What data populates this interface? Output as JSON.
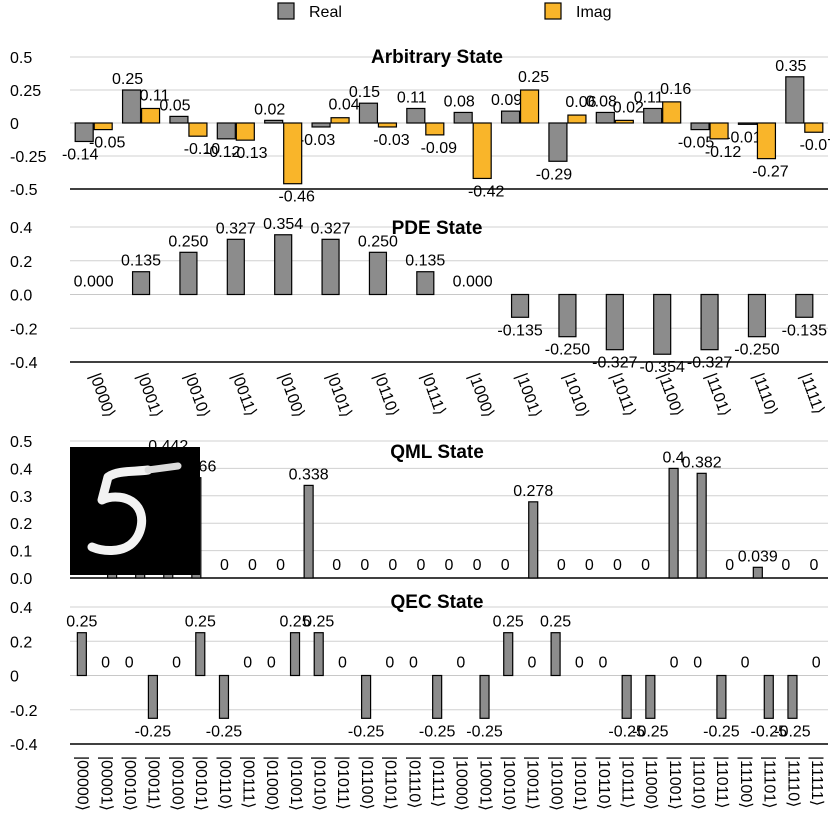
{
  "legend": [
    {
      "label": "Real",
      "color": "#8c8c8c"
    },
    {
      "label": "Imag",
      "color": "#f9b52a"
    }
  ],
  "chart_data": [
    {
      "type": "bar",
      "title": "Arbitrary State",
      "ylim": [
        -0.5,
        0.5
      ],
      "yticks": [
        "0.5",
        "0.25",
        "0",
        "-0.25",
        "-0.5"
      ],
      "series": [
        {
          "name": "Real",
          "color": "#8c8c8c",
          "values": [
            -0.14,
            0.25,
            0.05,
            -0.12,
            0.02,
            -0.03,
            0.15,
            0.11,
            0.08,
            0.09,
            -0.29,
            0.08,
            0.11,
            -0.05,
            -0.01,
            0.35
          ],
          "labels": [
            "-0.14",
            "0.25",
            "0.05",
            "-0.12",
            "0.02",
            "-0.03",
            "0.15",
            "0.11",
            "0.08",
            "0.09",
            "-0.29",
            "0.08",
            "0.11",
            "-0.05",
            "-0.01",
            "0.35"
          ]
        },
        {
          "name": "Imag",
          "color": "#f9b52a",
          "values": [
            -0.05,
            0.11,
            -0.1,
            -0.13,
            -0.46,
            0.04,
            -0.03,
            -0.09,
            -0.42,
            0.25,
            0.06,
            0.02,
            0.16,
            -0.12,
            -0.27,
            -0.07
          ],
          "labels": [
            "-0.05",
            "0.11",
            "-0.10",
            "-0.13",
            "-0.46",
            "0.04",
            "-0.03",
            "-0.09",
            "-0.42",
            "0.25",
            "0.06",
            "0.02",
            "0.16",
            "-0.12",
            "-0.27",
            "-0.07"
          ]
        }
      ]
    },
    {
      "type": "bar",
      "title": "PDE State",
      "ylim": [
        -0.4,
        0.4
      ],
      "yticks": [
        "0.4",
        "0.2",
        "0.0",
        "-0.2",
        "-0.4"
      ],
      "categories": [
        "|0000⟩",
        "|0001⟩",
        "|0010⟩",
        "|0011⟩",
        "|0100⟩",
        "|0101⟩",
        "|0110⟩",
        "|0111⟩",
        "|1000⟩",
        "|1001⟩",
        "|1010⟩",
        "|1011⟩",
        "|1100⟩",
        "|1101⟩",
        "|1110⟩",
        "|1111⟩"
      ],
      "series": [
        {
          "color": "#8c8c8c",
          "values": [
            0.0,
            0.135,
            0.25,
            0.327,
            0.354,
            0.327,
            0.25,
            0.135,
            0.0,
            -0.135,
            -0.25,
            -0.327,
            -0.354,
            -0.327,
            -0.25,
            -0.135
          ],
          "labels": [
            "0.000",
            "0.135",
            "0.250",
            "0.327",
            "0.354",
            "0.327",
            "0.250",
            "0.135",
            "0.000",
            "-0.135",
            "-0.250",
            "-0.327",
            "-0.354",
            "-0.327",
            "-0.250",
            "-0.135"
          ]
        }
      ]
    },
    {
      "type": "bar",
      "title": "QML State",
      "ylim": [
        0,
        0.5
      ],
      "yticks": [
        "0.5",
        "0.4",
        "0.3",
        "0.2",
        "0.1",
        "0.0"
      ],
      "series": [
        {
          "color": "#8c8c8c",
          "values": [
            0,
            0.048,
            0.412,
            0.442,
            0.366,
            0,
            0,
            0,
            0.338,
            0,
            0,
            0,
            0,
            0,
            0,
            0,
            0.278,
            0,
            0,
            0,
            0,
            0.4,
            0.382,
            0,
            0.039,
            0,
            0
          ],
          "labels": [
            "0",
            "0.048",
            "0.412",
            "0.442",
            "0.366",
            "0",
            "0",
            "0",
            "0.338",
            "0",
            "0",
            "0",
            "0",
            "0",
            "0",
            "0",
            "0.278",
            "0",
            "0",
            "0",
            "0",
            "0.4",
            "0.382",
            "0",
            "0.039",
            "0",
            "0"
          ]
        }
      ],
      "inset": "MNIST digit 5"
    },
    {
      "type": "bar",
      "title": "QEC State",
      "ylim": [
        -0.4,
        0.4
      ],
      "yticks": [
        "0.4",
        "0.2",
        "0",
        "-0.2",
        "-0.4"
      ],
      "categories": [
        "|00000⟩",
        "|00001⟩",
        "|00010⟩",
        "|00011⟩",
        "|00100⟩",
        "|00101⟩",
        "|00110⟩",
        "|00111⟩",
        "|01000⟩",
        "|01001⟩",
        "|01010⟩",
        "|01011⟩",
        "|01100⟩",
        "|01101⟩",
        "|01110⟩",
        "|01111⟩",
        "|10000⟩",
        "|10001⟩",
        "|10010⟩",
        "|10011⟩",
        "|10100⟩",
        "|10101⟩",
        "|10110⟩",
        "|10111⟩",
        "|11000⟩",
        "|11001⟩",
        "|11010⟩",
        "|11011⟩",
        "|11100⟩",
        "|11101⟩",
        "|11110⟩",
        "|11111⟩"
      ],
      "series": [
        {
          "color": "#8c8c8c",
          "values": [
            0.25,
            0,
            0,
            -0.25,
            0,
            0.25,
            -0.25,
            0,
            0,
            0.25,
            0.25,
            0,
            -0.25,
            0,
            0,
            -0.25,
            0,
            -0.25,
            0.25,
            0,
            0.25,
            0,
            0,
            -0.25,
            -0.25,
            0,
            0,
            -0.25,
            0,
            -0.25,
            -0.25,
            0
          ],
          "labels": [
            "0.25",
            "0",
            "0",
            "-0.25",
            "0",
            "0.25",
            "-0.25",
            "0",
            "0",
            "0.25",
            "0.25",
            "0",
            "-0.25",
            "0",
            "0",
            "-0.25",
            "0",
            "-0.25",
            "0.25",
            "0",
            "0.25",
            "0",
            "0",
            "-0.25",
            "-0.25",
            "0",
            "0",
            "-0.25",
            "0",
            "-0.25",
            "-0.25",
            "0"
          ]
        }
      ]
    }
  ]
}
